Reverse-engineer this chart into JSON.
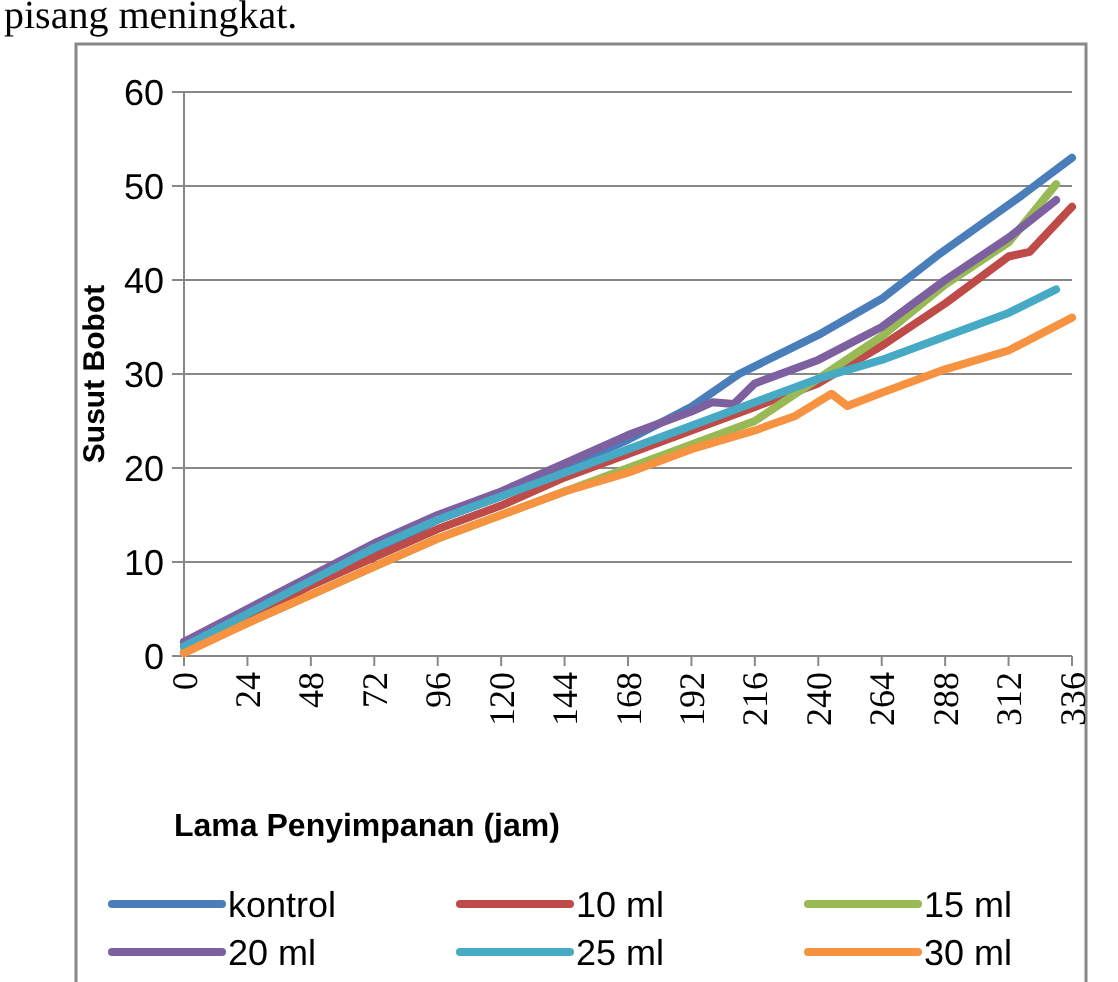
{
  "chart_data": {
    "type": "line",
    "annotations": [
      "pisang meningkat."
    ],
    "xlabel": "Lama Penyimpanan (jam)",
    "ylabel": "Susut Bobot",
    "xlim": [
      0,
      336
    ],
    "xticks": [
      0,
      24,
      48,
      72,
      96,
      120,
      144,
      168,
      192,
      216,
      240,
      264,
      288,
      312,
      336
    ],
    "ylim": [
      0,
      60
    ],
    "yticks": [
      0,
      10,
      20,
      30,
      40,
      50,
      60
    ],
    "grid": "y",
    "legend": "bottom",
    "marker": "none",
    "line_style": "solid",
    "series": [
      {
        "name": "kontrol",
        "color": "#4a7ebb",
        "x": [
          0,
          24,
          48,
          72,
          96,
          120,
          144,
          168,
          192,
          210,
          241,
          264,
          286,
          317,
          336
        ],
        "values": [
          1.5,
          4.5,
          8,
          11,
          14.5,
          17,
          20,
          23,
          26.5,
          30,
          34.3,
          38,
          42.8,
          49,
          53
        ]
      },
      {
        "name": "10 ml",
        "color": "#be4b48",
        "x": [
          0,
          24,
          48,
          72,
          96,
          120,
          144,
          168,
          192,
          216,
          240,
          264,
          288,
          312,
          320,
          336
        ],
        "values": [
          1,
          4,
          7.5,
          10.5,
          13.5,
          16,
          19,
          21.5,
          24,
          26.5,
          29,
          33,
          37.5,
          42.5,
          43,
          47.8
        ]
      },
      {
        "name": "15 ml",
        "color": "#98b954",
        "x": [
          0,
          24,
          48,
          72,
          96,
          120,
          144,
          168,
          192,
          216,
          240,
          264,
          288,
          312,
          330
        ],
        "values": [
          0.5,
          3.5,
          6.5,
          9.5,
          12.5,
          15,
          17.5,
          20,
          22.5,
          25,
          29.5,
          34,
          39.5,
          44,
          50.2
        ]
      },
      {
        "name": "20 ml",
        "color": "#7d60a0",
        "x": [
          0,
          24,
          48,
          72,
          96,
          120,
          144,
          168,
          192,
          200,
          208,
          216,
          240,
          264,
          288,
          312,
          330
        ],
        "values": [
          1.5,
          5,
          8.5,
          12,
          15,
          17.5,
          20.5,
          23.5,
          26,
          27,
          26.8,
          29,
          31.5,
          35,
          40,
          44.5,
          48.5
        ]
      },
      {
        "name": "25 ml",
        "color": "#46aac5",
        "x": [
          0,
          24,
          48,
          72,
          96,
          120,
          144,
          168,
          192,
          216,
          240,
          264,
          288,
          312,
          330
        ],
        "values": [
          1,
          4.5,
          8,
          11.5,
          14.5,
          17,
          19.5,
          22,
          24.5,
          27,
          29.5,
          31.5,
          34,
          36.5,
          39
        ]
      },
      {
        "name": "30 ml",
        "color": "#f69240",
        "x": [
          0,
          24,
          48,
          72,
          96,
          120,
          144,
          168,
          192,
          216,
          231,
          245,
          251,
          264,
          288,
          312,
          336
        ],
        "values": [
          0.3,
          3.5,
          6.5,
          9.5,
          12.5,
          15,
          17.5,
          19.5,
          22,
          24,
          25.5,
          27.9,
          26.6,
          28,
          30.5,
          32.5,
          36
        ]
      }
    ]
  }
}
